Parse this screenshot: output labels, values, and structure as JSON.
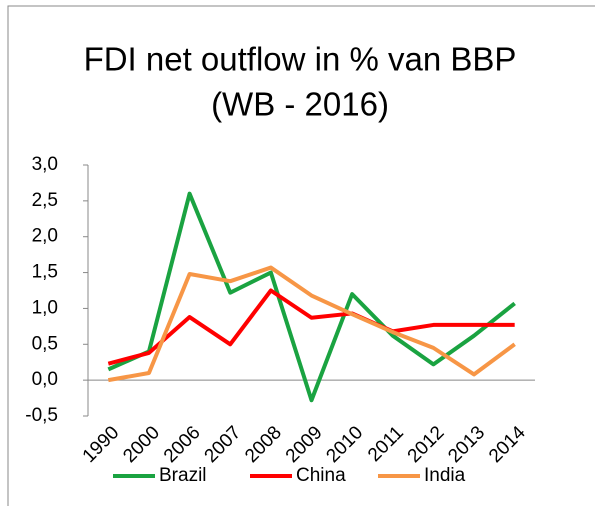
{
  "chart_data": {
    "type": "line",
    "title": [
      "FDI net outflow in % van BBP",
      "(WB - 2016)"
    ],
    "categories": [
      "1990",
      "2000",
      "2006",
      "2007",
      "2008",
      "2009",
      "2010",
      "2011",
      "2012",
      "2013",
      "2014"
    ],
    "series": [
      {
        "name": "Brazil",
        "color": "#1aa341",
        "values": [
          0.15,
          0.4,
          2.6,
          1.22,
          1.5,
          -0.28,
          1.2,
          0.62,
          0.22,
          0.62,
          1.07
        ]
      },
      {
        "name": "China",
        "color": "#ff0000",
        "values": [
          0.23,
          0.38,
          0.88,
          0.5,
          1.25,
          0.87,
          0.93,
          0.68,
          0.77,
          0.77,
          0.77
        ]
      },
      {
        "name": "India",
        "color": "#f79646",
        "values": [
          0.0,
          0.1,
          1.48,
          1.38,
          1.57,
          1.18,
          0.92,
          0.67,
          0.45,
          0.08,
          0.5
        ]
      }
    ],
    "ylim": [
      -0.5,
      3.0
    ],
    "yticks": [
      {
        "value": -0.5,
        "label": "-0,5"
      },
      {
        "value": 0,
        "label": "0,0"
      },
      {
        "value": 0.5,
        "label": "0,5"
      },
      {
        "value": 1.0,
        "label": "1,0"
      },
      {
        "value": 1.5,
        "label": "1,5"
      },
      {
        "value": 2.0,
        "label": "2,0"
      },
      {
        "value": 2.5,
        "label": "2,5"
      },
      {
        "value": 3.0,
        "label": "3,0"
      }
    ],
    "grid": false,
    "legend": "bottom"
  }
}
